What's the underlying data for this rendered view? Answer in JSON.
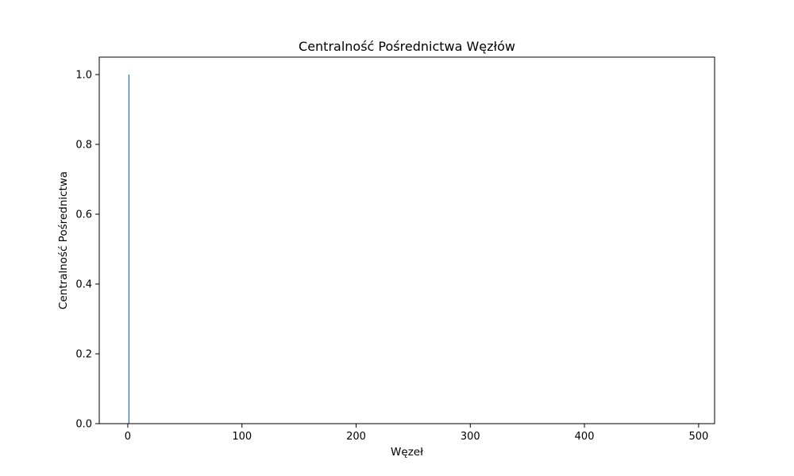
{
  "chart_data": {
    "type": "bar",
    "title": "Centralność Pośrednictwa Węzłów",
    "xlabel": "Węzeł",
    "ylabel": "Centralność Pośrednictwa",
    "xlim": [
      -25,
      514
    ],
    "ylim": [
      0,
      1.05
    ],
    "x_ticks": [
      0,
      100,
      200,
      300,
      400,
      500
    ],
    "y_ticks": [
      0.0,
      0.2,
      0.4,
      0.6,
      0.8,
      1.0
    ],
    "x_tick_labels": [
      "0",
      "100",
      "200",
      "300",
      "400",
      "500"
    ],
    "y_tick_labels": [
      "0.0",
      "0.2",
      "0.4",
      "0.6",
      "0.8",
      "1.0"
    ],
    "bars": [
      {
        "x": 1,
        "value": 1.0
      }
    ],
    "bar_color": "#1f77b4",
    "grid": false
  }
}
